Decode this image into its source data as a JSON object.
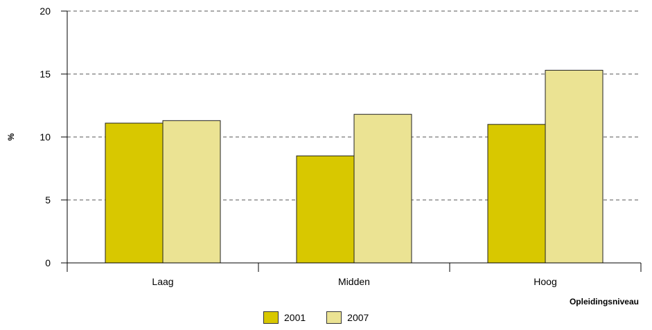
{
  "chart_data": {
    "type": "bar",
    "categories": [
      "Laag",
      "Midden",
      "Hoog"
    ],
    "series": [
      {
        "name": "2001",
        "values": [
          11.1,
          8.5,
          11.0
        ],
        "color": "#d8c800"
      },
      {
        "name": "2007",
        "values": [
          11.3,
          11.8,
          15.3
        ],
        "color": "#ebe393"
      }
    ],
    "ylim": [
      0,
      20
    ],
    "yticks": [
      0,
      5,
      10,
      15,
      20
    ],
    "xlabel": "Opleidingsniveau",
    "ylabel": "%",
    "grid": "horizontal dashed",
    "legend_position": "bottom"
  }
}
